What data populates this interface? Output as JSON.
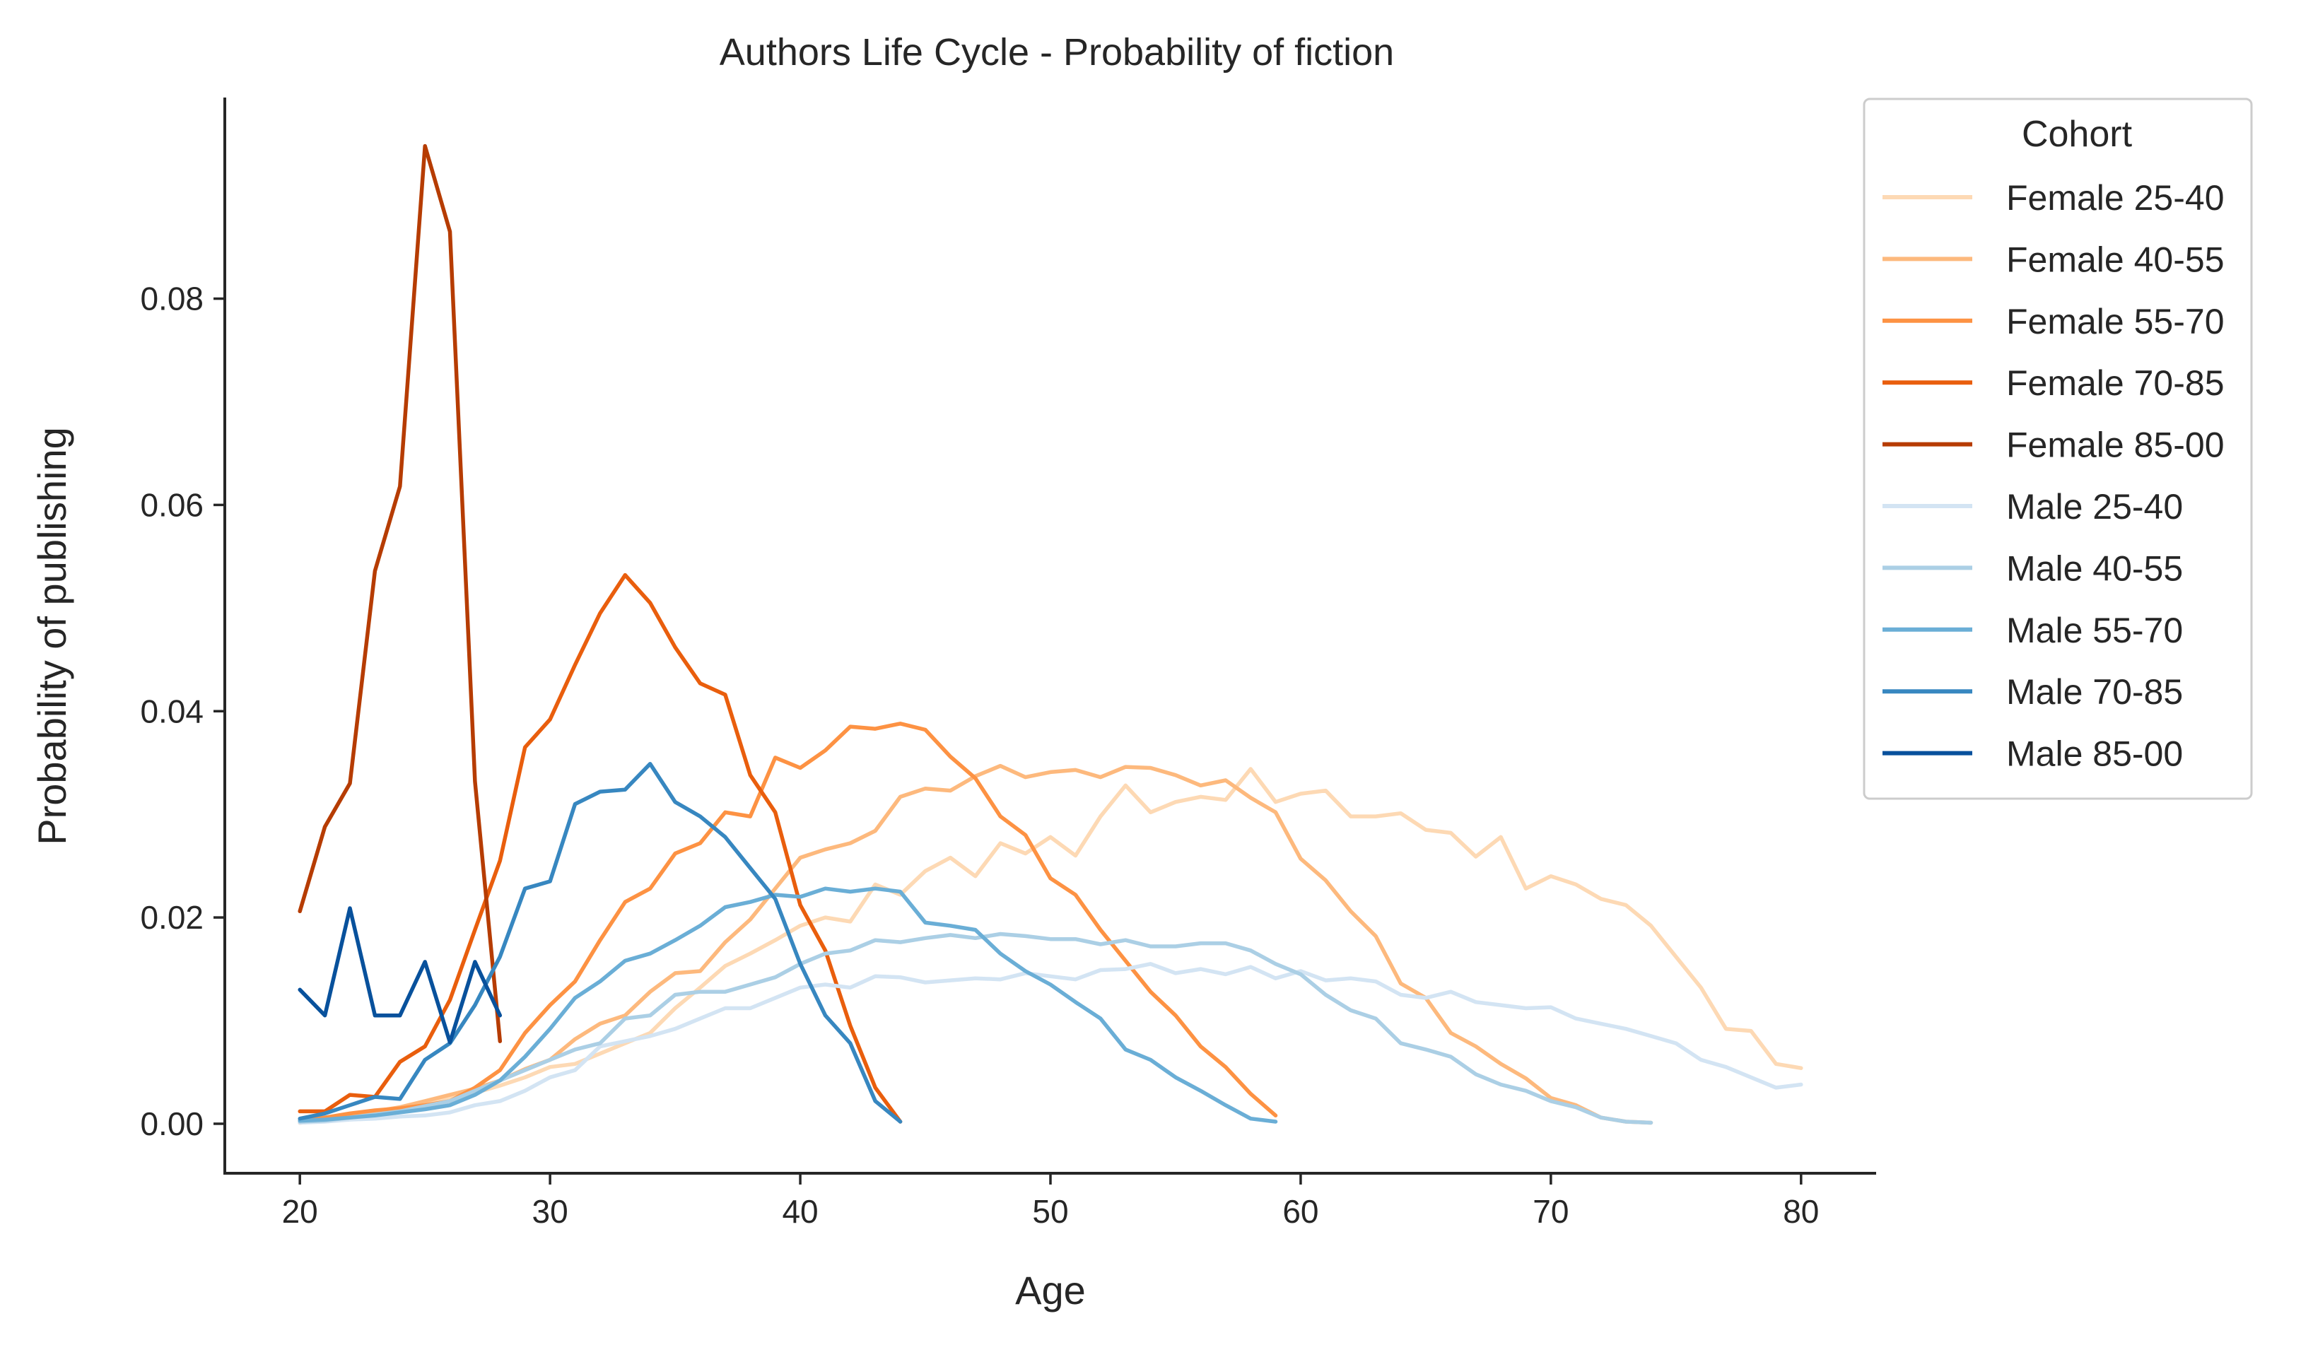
{
  "chart_data": {
    "type": "line",
    "title": "Authors Life Cycle - Probability of fiction",
    "xlabel": "Age",
    "ylabel": "Probability of publishing",
    "xlim": [
      17,
      83
    ],
    "ylim": [
      -0.0048,
      0.0995
    ],
    "xticks": [
      20,
      30,
      40,
      50,
      60,
      70,
      80
    ],
    "yticks": [
      0.0,
      0.02,
      0.04,
      0.06,
      0.08
    ],
    "ytick_labels": [
      "0.00",
      "0.02",
      "0.04",
      "0.06",
      "0.08"
    ],
    "grid": false,
    "legend": {
      "title": "Cohort",
      "placement": "outside right, top"
    },
    "series": [
      {
        "name": "Female 25-40",
        "color": "#fdd9b4",
        "x": [
          20,
          21,
          22,
          23,
          24,
          25,
          26,
          27,
          28,
          29,
          30,
          31,
          32,
          33,
          34,
          35,
          36,
          37,
          38,
          39,
          40,
          41,
          42,
          43,
          44,
          45,
          46,
          47,
          48,
          49,
          50,
          51,
          52,
          53,
          54,
          55,
          56,
          57,
          58,
          59,
          60,
          61,
          62,
          63,
          64,
          65,
          66,
          67,
          68,
          69,
          70,
          71,
          72,
          73,
          74,
          75,
          76,
          77,
          78,
          79,
          80
        ],
        "y": [
          0.0001,
          0.0003,
          0.0007,
          0.0012,
          0.0015,
          0.002,
          0.0025,
          0.003,
          0.0037,
          0.0045,
          0.0055,
          0.0058,
          0.0068,
          0.0078,
          0.0088,
          0.0112,
          0.0132,
          0.0153,
          0.0165,
          0.0178,
          0.0192,
          0.02,
          0.0196,
          0.0232,
          0.0222,
          0.0245,
          0.0258,
          0.024,
          0.0272,
          0.0262,
          0.0278,
          0.026,
          0.0298,
          0.0328,
          0.0302,
          0.0312,
          0.0317,
          0.0314,
          0.0344,
          0.0312,
          0.032,
          0.0323,
          0.0298,
          0.0298,
          0.0301,
          0.0285,
          0.0282,
          0.0259,
          0.0278,
          0.0228,
          0.024,
          0.0232,
          0.0218,
          0.0212,
          0.0192,
          0.0162,
          0.0132,
          0.0092,
          0.009,
          0.0058,
          0.0054
        ]
      },
      {
        "name": "Female 40-55",
        "color": "#fdb97d",
        "x": [
          20,
          21,
          22,
          23,
          24,
          25,
          26,
          27,
          28,
          29,
          30,
          31,
          32,
          33,
          34,
          35,
          36,
          37,
          38,
          39,
          40,
          41,
          42,
          43,
          44,
          45,
          46,
          47,
          48,
          49,
          50,
          51,
          52,
          53,
          54,
          55,
          56,
          57,
          58,
          59,
          60,
          61,
          62,
          63,
          64,
          65,
          66,
          67,
          68,
          69,
          70,
          71,
          72,
          73,
          74
        ],
        "y": [
          0.0001,
          0.0003,
          0.0007,
          0.0012,
          0.0016,
          0.0022,
          0.0028,
          0.0034,
          0.0042,
          0.0053,
          0.0062,
          0.0082,
          0.0097,
          0.0105,
          0.0128,
          0.0146,
          0.0148,
          0.0176,
          0.0198,
          0.0228,
          0.0258,
          0.0266,
          0.0272,
          0.0284,
          0.0317,
          0.0325,
          0.0323,
          0.0337,
          0.0347,
          0.0336,
          0.0341,
          0.0343,
          0.0336,
          0.0346,
          0.0345,
          0.0338,
          0.0328,
          0.0333,
          0.0316,
          0.0302,
          0.0257,
          0.0236,
          0.0206,
          0.0182,
          0.0136,
          0.0122,
          0.0088,
          0.0075,
          0.0058,
          0.0044,
          0.0025,
          0.0018,
          0.0006,
          0.0002,
          0.0001
        ]
      },
      {
        "name": "Female 55-70",
        "color": "#fd9243",
        "x": [
          20,
          21,
          22,
          23,
          24,
          25,
          26,
          27,
          28,
          29,
          30,
          31,
          32,
          33,
          34,
          35,
          36,
          37,
          38,
          39,
          40,
          41,
          42,
          43,
          44,
          45,
          46,
          47,
          48,
          49,
          50,
          51,
          52,
          53,
          54,
          55,
          56,
          57,
          58,
          59
        ],
        "y": [
          0.0003,
          0.0006,
          0.001,
          0.0013,
          0.0015,
          0.0018,
          0.0022,
          0.0035,
          0.0052,
          0.0088,
          0.0115,
          0.0138,
          0.0178,
          0.0215,
          0.0228,
          0.0262,
          0.0272,
          0.0302,
          0.0298,
          0.0355,
          0.0345,
          0.0362,
          0.0385,
          0.0383,
          0.0388,
          0.0382,
          0.0356,
          0.0335,
          0.0298,
          0.028,
          0.0238,
          0.0222,
          0.0188,
          0.0158,
          0.0128,
          0.0105,
          0.0075,
          0.0055,
          0.0029,
          0.0008
        ]
      },
      {
        "name": "Female 70-85",
        "color": "#e95e0d",
        "x": [
          20,
          21,
          22,
          23,
          24,
          25,
          26,
          27,
          28,
          29,
          30,
          31,
          32,
          33,
          34,
          35,
          36,
          37,
          38,
          39,
          40,
          41,
          42,
          43,
          44
        ],
        "y": [
          0.0012,
          0.0012,
          0.0028,
          0.0026,
          0.006,
          0.0075,
          0.012,
          0.0188,
          0.0255,
          0.0365,
          0.0392,
          0.0445,
          0.0495,
          0.0532,
          0.0505,
          0.0462,
          0.0427,
          0.0416,
          0.0338,
          0.0302,
          0.0212,
          0.0168,
          0.0095,
          0.0035,
          0.0002
        ]
      },
      {
        "name": "Female 85-00",
        "color": "#b63c02",
        "x": [
          20,
          21,
          22,
          23,
          24,
          25,
          26,
          27,
          28
        ],
        "y": [
          0.0206,
          0.0288,
          0.033,
          0.0536,
          0.0618,
          0.0948,
          0.0865,
          0.0332,
          0.008
        ]
      },
      {
        "name": "Male 25-40",
        "color": "#d3e4f3",
        "x": [
          20,
          21,
          22,
          23,
          24,
          25,
          26,
          27,
          28,
          29,
          30,
          31,
          32,
          33,
          34,
          35,
          36,
          37,
          38,
          39,
          40,
          41,
          42,
          43,
          44,
          45,
          46,
          47,
          48,
          49,
          50,
          51,
          52,
          53,
          54,
          55,
          56,
          57,
          58,
          59,
          60,
          61,
          62,
          63,
          64,
          65,
          66,
          67,
          68,
          69,
          70,
          71,
          72,
          73,
          74,
          75,
          76,
          77,
          78,
          79,
          80
        ],
        "y": [
          0.0001,
          0.0002,
          0.0004,
          0.0005,
          0.0007,
          0.0008,
          0.0011,
          0.0018,
          0.0022,
          0.0032,
          0.0045,
          0.0052,
          0.0075,
          0.008,
          0.0085,
          0.0092,
          0.0102,
          0.0112,
          0.0112,
          0.0122,
          0.0132,
          0.0135,
          0.0132,
          0.0143,
          0.0142,
          0.0137,
          0.0139,
          0.0141,
          0.014,
          0.0146,
          0.0143,
          0.014,
          0.0149,
          0.015,
          0.0155,
          0.0146,
          0.015,
          0.0145,
          0.0152,
          0.0141,
          0.0148,
          0.0139,
          0.0141,
          0.0138,
          0.0125,
          0.0122,
          0.0128,
          0.0118,
          0.0115,
          0.0112,
          0.0113,
          0.0102,
          0.0097,
          0.0092,
          0.0085,
          0.0078,
          0.0062,
          0.0055,
          0.0045,
          0.0035,
          0.0038
        ]
      },
      {
        "name": "Male 40-55",
        "color": "#abcfe5",
        "x": [
          20,
          21,
          22,
          23,
          24,
          25,
          26,
          27,
          28,
          29,
          30,
          31,
          32,
          33,
          34,
          35,
          36,
          37,
          38,
          39,
          40,
          41,
          42,
          43,
          44,
          45,
          46,
          47,
          48,
          49,
          50,
          51,
          52,
          53,
          54,
          55,
          56,
          57,
          58,
          59,
          60,
          61,
          62,
          63,
          64,
          65,
          66,
          67,
          68,
          69,
          70,
          71,
          72,
          73,
          74
        ],
        "y": [
          0.0002,
          0.0003,
          0.0006,
          0.0009,
          0.0012,
          0.0017,
          0.0022,
          0.0032,
          0.0042,
          0.0052,
          0.0062,
          0.0072,
          0.0078,
          0.0102,
          0.0105,
          0.0125,
          0.0128,
          0.0128,
          0.0135,
          0.0142,
          0.0155,
          0.0165,
          0.0168,
          0.0178,
          0.0176,
          0.018,
          0.0183,
          0.018,
          0.0184,
          0.0182,
          0.0179,
          0.0179,
          0.0174,
          0.0178,
          0.0172,
          0.0172,
          0.0175,
          0.0175,
          0.0168,
          0.0155,
          0.0145,
          0.0125,
          0.011,
          0.0102,
          0.0078,
          0.0072,
          0.0065,
          0.0048,
          0.0038,
          0.0032,
          0.0022,
          0.0016,
          0.0006,
          0.0002,
          0.0001
        ]
      },
      {
        "name": "Male 55-70",
        "color": "#6aaed6",
        "x": [
          20,
          21,
          22,
          23,
          24,
          25,
          26,
          27,
          28,
          29,
          30,
          31,
          32,
          33,
          34,
          35,
          36,
          37,
          38,
          39,
          40,
          41,
          42,
          43,
          44,
          45,
          46,
          47,
          48,
          49,
          50,
          51,
          52,
          53,
          54,
          55,
          56,
          57,
          58,
          59
        ],
        "y": [
          0.0003,
          0.0004,
          0.0006,
          0.0008,
          0.0011,
          0.0014,
          0.0018,
          0.0028,
          0.0042,
          0.0065,
          0.0092,
          0.0122,
          0.0138,
          0.0158,
          0.0165,
          0.0178,
          0.0192,
          0.021,
          0.0215,
          0.0222,
          0.022,
          0.0228,
          0.0225,
          0.0228,
          0.0225,
          0.0195,
          0.0192,
          0.0188,
          0.0165,
          0.0148,
          0.0135,
          0.0118,
          0.0102,
          0.0072,
          0.0062,
          0.0045,
          0.0032,
          0.0018,
          0.0005,
          0.0002
        ]
      },
      {
        "name": "Male 70-85",
        "color": "#3787c0",
        "x": [
          20,
          21,
          22,
          23,
          24,
          25,
          26,
          27,
          28,
          29,
          30,
          31,
          32,
          33,
          34,
          35,
          36,
          37,
          38,
          39,
          40,
          41,
          42,
          43,
          44
        ],
        "y": [
          0.0005,
          0.001,
          0.0018,
          0.0026,
          0.0024,
          0.0062,
          0.0078,
          0.0115,
          0.0162,
          0.0228,
          0.0235,
          0.031,
          0.0322,
          0.0324,
          0.0349,
          0.0312,
          0.0298,
          0.0278,
          0.0248,
          0.0218,
          0.0155,
          0.0105,
          0.0078,
          0.0022,
          0.0002
        ]
      },
      {
        "name": "Male 85-00",
        "color": "#08519c",
        "x": [
          20,
          21,
          22,
          23,
          24,
          25,
          26,
          27,
          28
        ],
        "y": [
          0.013,
          0.0105,
          0.0209,
          0.0105,
          0.0105,
          0.0157,
          0.0079,
          0.0157,
          0.0105
        ]
      }
    ]
  }
}
